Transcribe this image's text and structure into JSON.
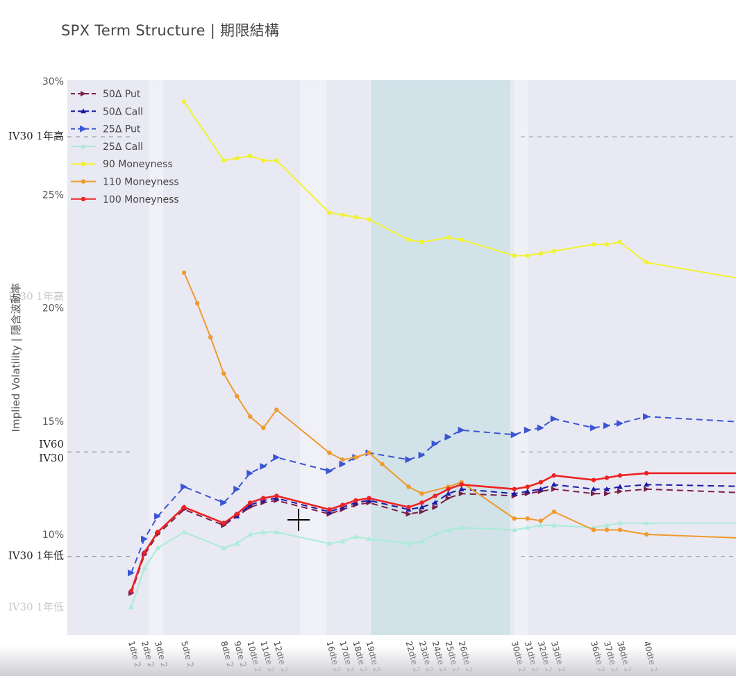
{
  "title": "SPX Term Structure | 期限結構",
  "chart_data": {
    "type": "line",
    "title": "SPX Term Structure | 期限結構",
    "ylabel": "Implied Volatility | 隱含波動率",
    "ylim": [
      0.06,
      0.3
    ],
    "yticks": [
      0.1,
      0.15,
      0.2,
      0.25,
      0.3
    ],
    "ytick_labels": [
      "10%",
      "15%",
      "20%",
      "25%",
      "30%"
    ],
    "x_range": [
      -2.5,
      52
    ],
    "xticks": [
      {
        "x": 0,
        "label": "1dte 2"
      },
      {
        "x": 1,
        "label": "2dte 2"
      },
      {
        "x": 2,
        "label": "3dte 2"
      },
      {
        "x": 4,
        "label": "5dte 2"
      },
      {
        "x": 7,
        "label": "8dte 2"
      },
      {
        "x": 8,
        "label": "9dte 2"
      },
      {
        "x": 9,
        "label": "10dte 2"
      },
      {
        "x": 10,
        "label": "11dte 2"
      },
      {
        "x": 11,
        "label": "12dte 2"
      },
      {
        "x": 15,
        "label": "16dte 2"
      },
      {
        "x": 16,
        "label": "17dte 2"
      },
      {
        "x": 17,
        "label": "18dte 2"
      },
      {
        "x": 18,
        "label": "19dte 2"
      },
      {
        "x": 21,
        "label": "22dte 2"
      },
      {
        "x": 22,
        "label": "23dte 2"
      },
      {
        "x": 23,
        "label": "24dte 2"
      },
      {
        "x": 24,
        "label": "25dte 2"
      },
      {
        "x": 25,
        "label": "26dte 2"
      },
      {
        "x": 29,
        "label": "30dte 2"
      },
      {
        "x": 30,
        "label": "31dte 2"
      },
      {
        "x": 31,
        "label": "32dte 2"
      },
      {
        "x": 32,
        "label": "33dte 2"
      },
      {
        "x": 35,
        "label": "36dte 2"
      },
      {
        "x": 36,
        "label": "37dte 2"
      },
      {
        "x": 37,
        "label": "38dte 2"
      },
      {
        "x": 39,
        "label": "40dte 2"
      }
    ],
    "shaded_band": {
      "x": [
        18,
        29
      ],
      "color": "#c9dfe6"
    },
    "reference_lines": [
      {
        "label": "IV30 1年高",
        "y": 0.2755
      },
      {
        "label": "IV60",
        "y": 0.1364
      },
      {
        "label": "IV30",
        "y": 0.1364
      },
      {
        "label": "IV30 1年低",
        "y": 0.0903
      }
    ],
    "faded_labels": [
      {
        "label": "IV30 1年高",
        "y": 0.205
      },
      {
        "label": "IV30 1年低",
        "y": 0.068
      }
    ],
    "legend_position": "top-left",
    "series": [
      {
        "name": "50Δ Put",
        "color": "#7a1f4a",
        "dash": "dash",
        "points": [
          [
            0,
            0.074
          ],
          [
            1,
            0.091
          ],
          [
            2,
            0.1
          ],
          [
            4,
            0.111
          ],
          [
            7,
            0.104
          ],
          [
            8,
            0.108
          ],
          [
            9,
            0.112
          ],
          [
            10,
            0.114
          ],
          [
            11,
            0.115
          ],
          [
            15,
            0.109
          ],
          [
            16,
            0.111
          ],
          [
            17,
            0.113
          ],
          [
            18,
            0.114
          ],
          [
            21,
            0.109
          ],
          [
            22,
            0.11
          ],
          [
            23,
            0.112
          ],
          [
            24,
            0.116
          ],
          [
            25,
            0.118
          ],
          [
            29,
            0.117
          ],
          [
            30,
            0.118
          ],
          [
            31,
            0.119
          ],
          [
            32,
            0.12
          ],
          [
            35,
            0.118
          ],
          [
            36,
            0.118
          ],
          [
            37,
            0.119
          ],
          [
            39,
            0.12
          ],
          [
            48,
            0.118
          ]
        ]
      },
      {
        "name": "50Δ Call",
        "color": "#1a1aa6",
        "dash": "dash",
        "points": [
          [
            0,
            0.075
          ],
          [
            1,
            0.092
          ],
          [
            2,
            0.101
          ],
          [
            4,
            0.112
          ],
          [
            7,
            0.105
          ],
          [
            8,
            0.108
          ],
          [
            9,
            0.113
          ],
          [
            10,
            0.115
          ],
          [
            11,
            0.116
          ],
          [
            15,
            0.11
          ],
          [
            16,
            0.112
          ],
          [
            17,
            0.114
          ],
          [
            18,
            0.115
          ],
          [
            21,
            0.111
          ],
          [
            22,
            0.112
          ],
          [
            23,
            0.114
          ],
          [
            24,
            0.118
          ],
          [
            25,
            0.12
          ],
          [
            29,
            0.118
          ],
          [
            30,
            0.119
          ],
          [
            31,
            0.12
          ],
          [
            32,
            0.122
          ],
          [
            35,
            0.12
          ],
          [
            36,
            0.12
          ],
          [
            37,
            0.121
          ],
          [
            39,
            0.122
          ],
          [
            48,
            0.121
          ]
        ]
      },
      {
        "name": "25Δ Put",
        "color": "#3a55d4",
        "dash": "dash",
        "points": [
          [
            0,
            0.083
          ],
          [
            1,
            0.098
          ],
          [
            2,
            0.108
          ],
          [
            4,
            0.121
          ],
          [
            7,
            0.114
          ],
          [
            8,
            0.12
          ],
          [
            9,
            0.127
          ],
          [
            10,
            0.13
          ],
          [
            11,
            0.134
          ],
          [
            15,
            0.128
          ],
          [
            16,
            0.131
          ],
          [
            17,
            0.134
          ],
          [
            18,
            0.136
          ],
          [
            21,
            0.133
          ],
          [
            22,
            0.135
          ],
          [
            23,
            0.14
          ],
          [
            24,
            0.143
          ],
          [
            25,
            0.146
          ],
          [
            29,
            0.144
          ],
          [
            30,
            0.146
          ],
          [
            31,
            0.147
          ],
          [
            32,
            0.151
          ],
          [
            35,
            0.147
          ],
          [
            36,
            0.148
          ],
          [
            37,
            0.149
          ],
          [
            39,
            0.152
          ],
          [
            48,
            0.149
          ]
        ]
      },
      {
        "name": "25Δ Call",
        "color": "#a9ecd7",
        "dash": "solid",
        "points": [
          [
            0,
            0.068
          ],
          [
            1,
            0.085
          ],
          [
            2,
            0.094
          ],
          [
            4,
            0.101
          ],
          [
            7,
            0.094
          ],
          [
            8,
            0.096
          ],
          [
            9,
            0.1
          ],
          [
            10,
            0.101
          ],
          [
            11,
            0.101
          ],
          [
            15,
            0.096
          ],
          [
            16,
            0.097
          ],
          [
            17,
            0.099
          ],
          [
            18,
            0.098
          ],
          [
            21,
            0.096
          ],
          [
            22,
            0.097
          ],
          [
            23,
            0.1
          ],
          [
            24,
            0.102
          ],
          [
            25,
            0.103
          ],
          [
            29,
            0.102
          ],
          [
            30,
            0.103
          ],
          [
            31,
            0.104
          ],
          [
            32,
            0.104
          ],
          [
            35,
            0.103
          ],
          [
            36,
            0.104
          ],
          [
            37,
            0.105
          ],
          [
            39,
            0.105
          ],
          [
            48,
            0.105
          ]
        ]
      },
      {
        "name": "90 Moneyness",
        "color": "#f2f230",
        "dash": "solid",
        "points": [
          [
            4,
            0.291
          ],
          [
            7,
            0.265
          ],
          [
            8,
            0.266
          ],
          [
            9,
            0.267
          ],
          [
            10,
            0.265
          ],
          [
            11,
            0.265
          ],
          [
            15,
            0.242
          ],
          [
            16,
            0.241
          ],
          [
            17,
            0.24
          ],
          [
            18,
            0.239
          ],
          [
            21,
            0.23
          ],
          [
            22,
            0.229
          ],
          [
            24,
            0.231
          ],
          [
            25,
            0.23
          ],
          [
            29,
            0.223
          ],
          [
            30,
            0.223
          ],
          [
            31,
            0.224
          ],
          [
            32,
            0.225
          ],
          [
            35,
            0.228
          ],
          [
            36,
            0.228
          ],
          [
            37,
            0.229
          ],
          [
            39,
            0.22
          ],
          [
            48,
            0.211
          ]
        ]
      },
      {
        "name": "110 Moneyness",
        "color": "#ee9a2c",
        "dash": "solid",
        "points": [
          [
            4,
            0.2155
          ],
          [
            5,
            0.202
          ],
          [
            6,
            0.187
          ],
          [
            7,
            0.171
          ],
          [
            8,
            0.161
          ],
          [
            9,
            0.152
          ],
          [
            10,
            0.147
          ],
          [
            11,
            0.155
          ],
          [
            15,
            0.136
          ],
          [
            16,
            0.133
          ],
          [
            17,
            0.134
          ],
          [
            18,
            0.136
          ],
          [
            19,
            0.131
          ],
          [
            21,
            0.121
          ],
          [
            22,
            0.118
          ],
          [
            24,
            0.121
          ],
          [
            25,
            0.123
          ],
          [
            29,
            0.107
          ],
          [
            30,
            0.107
          ],
          [
            31,
            0.106
          ],
          [
            32,
            0.11
          ],
          [
            35,
            0.102
          ],
          [
            36,
            0.102
          ],
          [
            37,
            0.102
          ],
          [
            39,
            0.1
          ],
          [
            48,
            0.098
          ]
        ]
      },
      {
        "name": "100 Moneyness",
        "color": "#ee2222",
        "dash": "solid",
        "points": [
          [
            0,
            0.075
          ],
          [
            1,
            0.092
          ],
          [
            2,
            0.101
          ],
          [
            4,
            0.112
          ],
          [
            7,
            0.105
          ],
          [
            8,
            0.109
          ],
          [
            9,
            0.114
          ],
          [
            10,
            0.116
          ],
          [
            11,
            0.117
          ],
          [
            15,
            0.111
          ],
          [
            16,
            0.113
          ],
          [
            17,
            0.115
          ],
          [
            18,
            0.116
          ],
          [
            21,
            0.112
          ],
          [
            22,
            0.114
          ],
          [
            23,
            0.117
          ],
          [
            24,
            0.12
          ],
          [
            25,
            0.122
          ],
          [
            29,
            0.12
          ],
          [
            30,
            0.121
          ],
          [
            31,
            0.123
          ],
          [
            32,
            0.126
          ],
          [
            35,
            0.124
          ],
          [
            36,
            0.125
          ],
          [
            37,
            0.126
          ],
          [
            39,
            0.127
          ],
          [
            48,
            0.127
          ]
        ]
      }
    ]
  }
}
